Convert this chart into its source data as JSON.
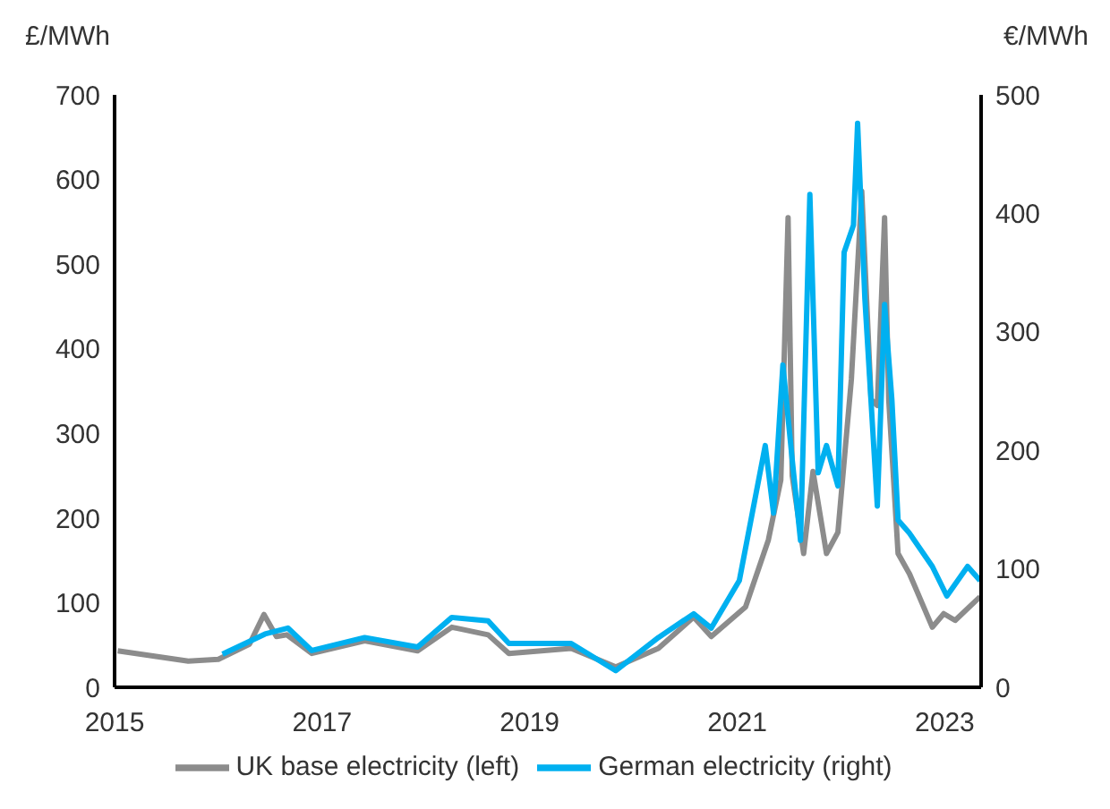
{
  "chart_data": {
    "type": "line",
    "ylabel": "£/MWh",
    "y2label": "€/MWh",
    "xlim": [
      2015,
      2023.35
    ],
    "xticks": [
      2015,
      2017,
      2019,
      2021,
      2023
    ],
    "ylim": [
      0,
      700
    ],
    "yticks": [
      0,
      100,
      200,
      300,
      400,
      500,
      600,
      700
    ],
    "y2lim": [
      0,
      500
    ],
    "y2ticks": [
      0,
      100,
      200,
      300,
      400,
      500
    ],
    "legend": "bottom",
    "series": [
      {
        "name": "UK base electricity (left)",
        "color": "#8c8c8c",
        "x": [
          2015.03,
          2015.71,
          2016.0,
          2016.3,
          2016.44,
          2016.56,
          2016.66,
          2016.9,
          2017.41,
          2017.92,
          2018.25,
          2018.6,
          2018.8,
          2019.4,
          2019.83,
          2020.24,
          2020.58,
          2020.75,
          2021.08,
          2021.3,
          2021.42,
          2021.49,
          2021.53,
          2021.64,
          2021.73,
          2021.86,
          2021.97,
          2022.1,
          2022.2,
          2022.29,
          2022.35,
          2022.42,
          2022.46,
          2022.55,
          2022.66,
          2022.88,
          2022.99,
          2023.1,
          2023.34
        ],
        "values": [
          43,
          31,
          33,
          51,
          86,
          60,
          62,
          40,
          55,
          43,
          71,
          62,
          40,
          46,
          24,
          46,
          83,
          60,
          95,
          174,
          245,
          555,
          250,
          158,
          255,
          158,
          183,
          364,
          586,
          340,
          333,
          555,
          340,
          158,
          134,
          71,
          87,
          79,
          107
        ]
      },
      {
        "name": "German electricity (right)",
        "color": "#00b0f0",
        "axis": "y2",
        "x": [
          2016.04,
          2016.45,
          2016.67,
          2016.9,
          2017.41,
          2017.92,
          2018.25,
          2018.6,
          2018.8,
          2019.4,
          2019.83,
          2020.24,
          2020.58,
          2020.75,
          2021.02,
          2021.27,
          2021.35,
          2021.44,
          2021.53,
          2021.61,
          2021.7,
          2021.78,
          2021.86,
          2021.97,
          2022.03,
          2022.12,
          2022.16,
          2022.23,
          2022.35,
          2022.42,
          2022.49,
          2022.55,
          2022.66,
          2022.88,
          2023.02,
          2023.22,
          2023.34
        ],
        "values": [
          28,
          45,
          50,
          31,
          42,
          34,
          59,
          56,
          37,
          37,
          14,
          42,
          62,
          50,
          90,
          204,
          147,
          272,
          192,
          124,
          416,
          181,
          204,
          170,
          367,
          390,
          476,
          328,
          153,
          323,
          243,
          141,
          130,
          102,
          77,
          102,
          90
        ]
      }
    ]
  }
}
